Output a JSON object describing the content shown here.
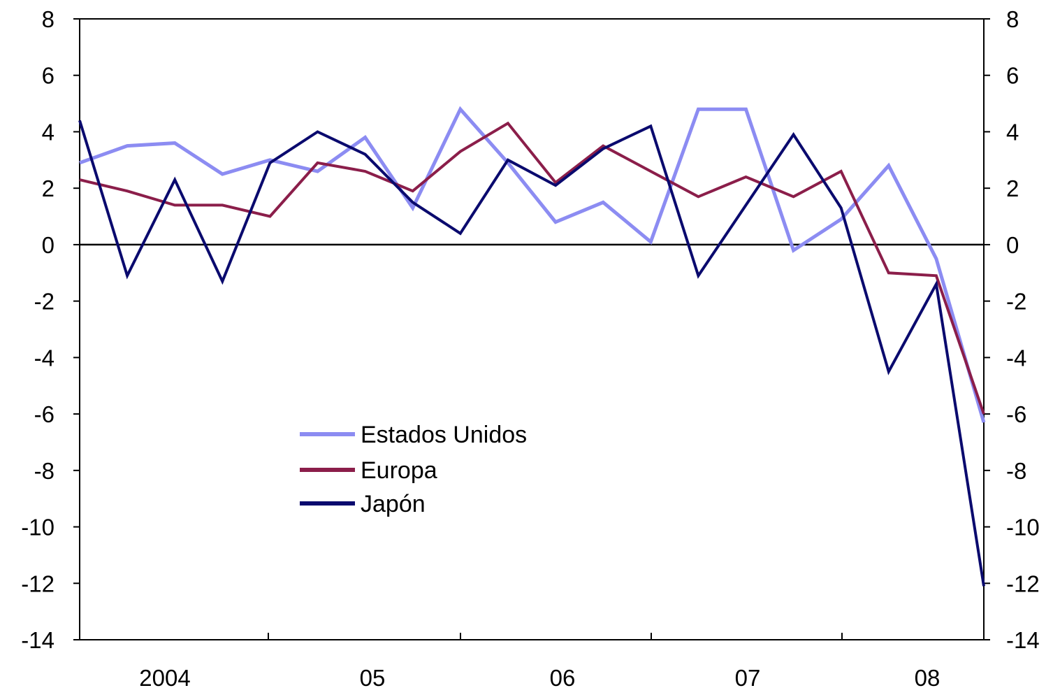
{
  "chart_data": {
    "type": "line",
    "title": "",
    "xlabel": "",
    "ylabel": "",
    "ylim": [
      -14,
      8
    ],
    "y_ticks": [
      "8",
      "6",
      "4",
      "2",
      "0",
      "-2",
      "-4",
      "-6",
      "-8",
      "-10",
      "-12",
      "-14"
    ],
    "y_tick_values": [
      8,
      6,
      4,
      2,
      0,
      -2,
      -4,
      -6,
      -8,
      -10,
      -12,
      -14
    ],
    "secondary_y_axis": true,
    "x_period_labels": [
      "2004",
      "05",
      "06",
      "07",
      "08"
    ],
    "x": [
      "2004 Q1",
      "2004 Q2",
      "2004 Q3",
      "2004 Q4",
      "2005 Q1",
      "2005 Q2",
      "2005 Q3",
      "2005 Q4",
      "2006 Q1",
      "2006 Q2",
      "2006 Q3",
      "2006 Q4",
      "2007 Q1",
      "2007 Q2",
      "2007 Q3",
      "2007 Q4",
      "2008 Q1",
      "2008 Q2",
      "2008 Q3",
      "2008 Q4"
    ],
    "zero_line": true,
    "grid": false,
    "legend_position": "lower-left",
    "series": [
      {
        "name": "Estados Unidos",
        "color": "#8C8CF2",
        "values": [
          2.9,
          3.5,
          3.6,
          2.5,
          3.0,
          2.6,
          3.8,
          1.3,
          4.8,
          2.9,
          0.8,
          1.5,
          0.1,
          4.8,
          4.8,
          -0.2,
          0.9,
          2.8,
          -0.5,
          -6.3
        ]
      },
      {
        "name": "Europa",
        "color": "#8B1E4A",
        "values": [
          2.3,
          1.9,
          1.4,
          1.4,
          1.0,
          2.9,
          2.6,
          1.9,
          3.3,
          4.3,
          2.2,
          3.5,
          2.6,
          1.7,
          2.4,
          1.7,
          2.6,
          -1.0,
          -1.1,
          -6.0
        ]
      },
      {
        "name": "Japón",
        "color": "#0A0A6E",
        "values": [
          4.4,
          -1.1,
          2.3,
          -1.3,
          2.9,
          4.0,
          3.2,
          1.5,
          0.4,
          3.0,
          2.1,
          3.4,
          4.2,
          -1.1,
          1.4,
          3.9,
          1.3,
          -4.5,
          -1.4,
          -12.1
        ]
      }
    ]
  }
}
